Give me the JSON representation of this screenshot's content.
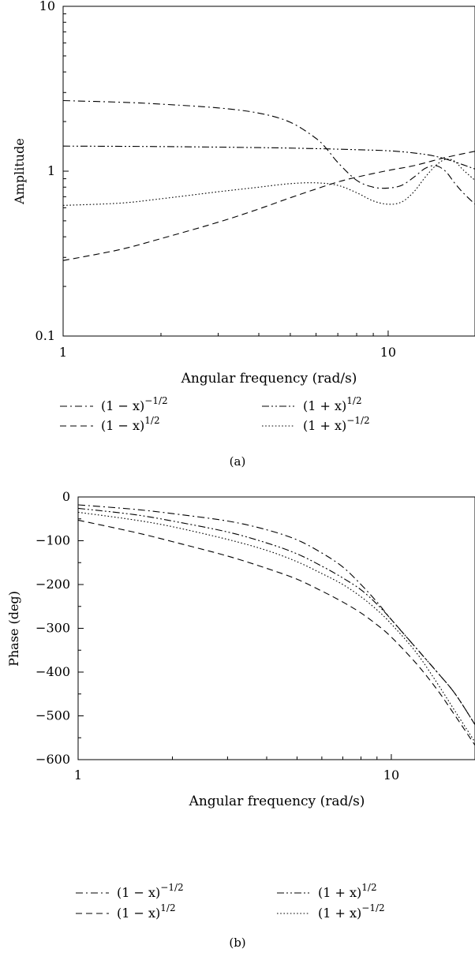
{
  "chart_data": [
    {
      "id": "a",
      "type": "line",
      "caption": "(a)",
      "xlabel": "Angular frequency (rad/s)",
      "ylabel": "Amplitude",
      "xscale": "log",
      "yscale": "log",
      "xlim": [
        1,
        18.5
      ],
      "ylim": [
        0.1,
        10
      ],
      "x_ticks": [
        1,
        10
      ],
      "x_tick_labels": [
        "1",
        "10"
      ],
      "y_ticks": [
        0.1,
        1,
        10
      ],
      "y_tick_labels": [
        "0.1",
        "1",
        "10"
      ],
      "grid": false,
      "legend_position": "bottom, two columns",
      "series": [
        {
          "name": "(1 − x)^{−1/2}",
          "legend": {
            "base": "(1 − x)",
            "exp": "−1/2"
          },
          "dash": "dashdot",
          "x": [
            1,
            1.5,
            2,
            3,
            4,
            5,
            6,
            6.5,
            7,
            8,
            9,
            10,
            11,
            12,
            13,
            14,
            15,
            16,
            17,
            18.5
          ],
          "y": [
            2.68,
            2.62,
            2.55,
            2.42,
            2.25,
            1.98,
            1.58,
            1.35,
            1.13,
            0.88,
            0.8,
            0.79,
            0.82,
            0.92,
            1.04,
            1.08,
            1.0,
            0.85,
            0.74,
            0.63
          ]
        },
        {
          "name": "(1 + x)^{1/2}",
          "legend": {
            "base": "(1 + x)",
            "exp": "1/2"
          },
          "dash": "dashdotdot",
          "x": [
            1,
            2,
            4,
            6,
            8,
            10,
            12,
            14,
            16,
            18.5
          ],
          "y": [
            1.42,
            1.41,
            1.39,
            1.37,
            1.35,
            1.33,
            1.29,
            1.23,
            1.14,
            1.03
          ]
        },
        {
          "name": "(1 − x)^{1/2}",
          "legend": {
            "base": "(1 − x)",
            "exp": "1/2"
          },
          "dash": "dashed",
          "x": [
            1,
            1.5,
            2,
            3,
            4,
            5,
            6,
            7,
            8,
            10,
            12,
            15,
            18.5
          ],
          "y": [
            0.287,
            0.335,
            0.39,
            0.49,
            0.59,
            0.69,
            0.78,
            0.86,
            0.92,
            1.01,
            1.08,
            1.21,
            1.32
          ]
        },
        {
          "name": "(1 + x)^{−1/2}",
          "legend": {
            "base": "(1 + x)",
            "exp": "−1/2"
          },
          "dash": "dotted",
          "x": [
            1,
            1.5,
            2,
            3,
            4,
            5,
            6,
            7,
            8,
            9,
            10,
            11,
            12,
            13,
            14,
            15,
            16,
            17,
            18.5
          ],
          "y": [
            0.62,
            0.64,
            0.68,
            0.75,
            0.8,
            0.84,
            0.85,
            0.82,
            0.74,
            0.66,
            0.63,
            0.65,
            0.75,
            0.92,
            1.08,
            1.18,
            1.15,
            1.02,
            0.88
          ]
        }
      ]
    },
    {
      "id": "b",
      "type": "line",
      "caption": "(b)",
      "xlabel": "Angular frequency (rad/s)",
      "ylabel": "Phase (deg)",
      "xscale": "log",
      "yscale": "linear",
      "xlim": [
        1,
        18.5
      ],
      "ylim": [
        -600,
        0
      ],
      "x_ticks": [
        1,
        10
      ],
      "x_tick_labels": [
        "1",
        "10"
      ],
      "y_ticks": [
        0,
        -100,
        -200,
        -300,
        -400,
        -500,
        -600
      ],
      "y_tick_labels": [
        "0",
        "−100",
        "−200",
        "−300",
        "−400",
        "−500",
        "−600"
      ],
      "grid": false,
      "legend_position": "bottom, two columns",
      "series": [
        {
          "name": "(1 − x)^{−1/2}",
          "legend": {
            "base": "(1 − x)",
            "exp": "−1/2"
          },
          "dash": "dashdot",
          "x": [
            1,
            1.5,
            2,
            3,
            4,
            5,
            6,
            7,
            8,
            9,
            10,
            12,
            14,
            16,
            18.5
          ],
          "y": [
            -18,
            -28,
            -38,
            -55,
            -75,
            -98,
            -128,
            -160,
            -200,
            -240,
            -280,
            -345,
            -400,
            -450,
            -520
          ]
        },
        {
          "name": "(1 + x)^{1/2}",
          "legend": {
            "base": "(1 + x)",
            "exp": "1/2"
          },
          "dash": "dashdotdot",
          "x": [
            1,
            1.5,
            2,
            3,
            4,
            5,
            6,
            7,
            8,
            9,
            10,
            12,
            14,
            16,
            18.5
          ],
          "y": [
            -26,
            -40,
            -55,
            -80,
            -105,
            -130,
            -158,
            -185,
            -212,
            -245,
            -280,
            -345,
            -400,
            -450,
            -520
          ]
        },
        {
          "name": "(1 − x)^{1/2}",
          "legend": {
            "base": "(1 − x)",
            "exp": "1/2"
          },
          "dash": "dashed",
          "x": [
            1,
            1.5,
            2,
            3,
            4,
            5,
            6,
            7,
            8,
            9,
            10,
            12,
            14,
            16,
            18.5
          ],
          "y": [
            -53,
            -80,
            -102,
            -135,
            -163,
            -188,
            -215,
            -240,
            -265,
            -292,
            -320,
            -380,
            -440,
            -500,
            -567
          ]
        },
        {
          "name": "(1 + x)^{−1/2}",
          "legend": {
            "base": "(1 + x)",
            "exp": "−1/2"
          },
          "dash": "dotted",
          "x": [
            1,
            1.5,
            2,
            3,
            4,
            5,
            6,
            7,
            8,
            9,
            10,
            12,
            14,
            16,
            18.5
          ],
          "y": [
            -35,
            -52,
            -68,
            -97,
            -122,
            -148,
            -175,
            -200,
            -228,
            -258,
            -290,
            -355,
            -425,
            -490,
            -560
          ]
        }
      ]
    }
  ]
}
